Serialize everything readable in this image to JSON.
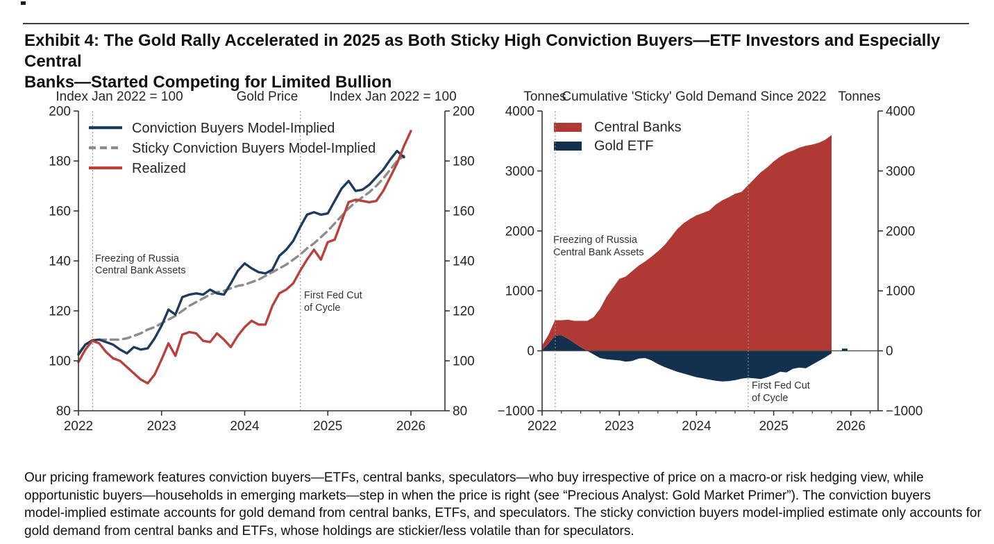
{
  "page": {
    "title_lines": [
      "Exhibit 4: The Gold Rally Accelerated in 2025 as Both Sticky High Conviction Buyers—ETF Investors and Especially Central",
      "Banks—Started Competing for Limited Bullion"
    ],
    "footnote_lines": [
      "Our pricing framework features conviction buyers—ETFs, central banks, speculators—who buy irrespective of price on a macro-or risk hedging view, while",
      "opportunistic buyers—households in emerging markets—step in when the price is right (see “Precious Analyst: Gold Market Primer”). The conviction buyers",
      "model-implied estimate accounts for gold demand from central banks, ETFs, and speculators. The sticky conviction buyers model-implied estimate only accounts for",
      "gold demand from central banks and ETFs, whose holdings are stickier/less volatile than for speculators."
    ]
  },
  "colors": {
    "navy": "#1E3A5C",
    "navy_fill": "#14304F",
    "red": "#B8423B",
    "red_fill": "#B03A33",
    "gray": "#8C8C8C",
    "axis": "#333333",
    "text": "#262626",
    "annotation_line": "#909090",
    "annotation_text": "#333333",
    "zero_line": "#4D4D4D"
  },
  "chart_data": [
    {
      "type": "line",
      "title": "Gold Price",
      "left_axis_header": "Index Jan 2022 = 100",
      "right_axis_header": "Index Jan 2022 = 100",
      "ylim": [
        80,
        200
      ],
      "ytick_values": [
        80,
        100,
        120,
        140,
        160,
        180,
        200
      ],
      "ytick_labels": [
        "80",
        "100",
        "120",
        "140",
        "160",
        "180",
        "200"
      ],
      "xtick_values": [
        2022,
        2023,
        2024,
        2025,
        2026
      ],
      "xtick_labels": [
        "2022",
        "2023",
        "2024",
        "2025",
        "2026"
      ],
      "x_start": 2022,
      "x_step": 0.083333,
      "series": [
        {
          "name": "Conviction Buyers Model-Implied",
          "color_key": "navy",
          "style": "solid",
          "values": [
            102.5,
            106.5,
            108.2,
            108.5,
            107.5,
            106.5,
            104.5,
            103,
            105.5,
            104.5,
            105,
            109,
            114,
            120.5,
            118.5,
            125.5,
            126.5,
            127,
            126.5,
            128.5,
            127,
            126.5,
            131,
            136,
            139,
            137,
            135.5,
            135,
            136.5,
            142,
            144.5,
            148,
            153.5,
            158.5,
            159.5,
            158.5,
            159,
            164,
            169,
            172,
            168,
            168.5,
            170.5,
            173.5,
            176.5,
            180.5,
            184,
            181.5
          ]
        },
        {
          "name": "Sticky Conviction Buyers Model-Implied",
          "color_key": "gray",
          "style": "dashed",
          "values": [
            103,
            106.5,
            108,
            108.5,
            108.5,
            108.5,
            108.5,
            109,
            110,
            111,
            112.5,
            113.5,
            115,
            116.5,
            118,
            120,
            122,
            123.5,
            125,
            126.5,
            127.5,
            128,
            129,
            130,
            130.5,
            131.5,
            132.5,
            134,
            135.5,
            137,
            138.5,
            140.5,
            142.5,
            145,
            147,
            149.5,
            152,
            155,
            158,
            161,
            163.5,
            165.5,
            167.5,
            170,
            173,
            176.5,
            180,
            182
          ]
        },
        {
          "name": "Realized",
          "color_key": "red",
          "style": "solid",
          "values": [
            99.5,
            104.5,
            108,
            107,
            103.5,
            101,
            100,
            97.5,
            95,
            92.5,
            91,
            94.5,
            100.5,
            107,
            102,
            110.5,
            111.5,
            111,
            108,
            107.5,
            111,
            108.5,
            105.5,
            110,
            113.5,
            116,
            114.5,
            114.5,
            122,
            127,
            128.5,
            131,
            136,
            140.5,
            144.5,
            140.5,
            147.5,
            148.5,
            156,
            163.5,
            164.5,
            164,
            163.5,
            164,
            168,
            173.5,
            179,
            186,
            192
          ]
        }
      ],
      "annotations": [
        {
          "lines": [
            "Freezing of Russia",
            "Central Bank Assets"
          ],
          "x": 2022.17
        },
        {
          "lines": [
            "First Fed Cut",
            "of Cycle"
          ],
          "x": 2024.67
        }
      ]
    },
    {
      "type": "area",
      "title": "Cumulative 'Sticky' Gold Demand Since 2022",
      "left_axis_header": "Tonnes",
      "right_axis_header": "Tonnes",
      "ylim": [
        -1000,
        4000
      ],
      "ytick_values": [
        -1000,
        0,
        1000,
        2000,
        3000,
        4000
      ],
      "ytick_labels": [
        "−1000",
        "0",
        "1000",
        "2000",
        "3000",
        "4000"
      ],
      "xtick_values": [
        2022,
        2023,
        2024,
        2025,
        2026
      ],
      "xtick_labels": [
        "2022",
        "2023",
        "2024",
        "2025",
        "2026"
      ],
      "x_start": 2022,
      "x_step": 0.083333,
      "series": [
        {
          "name": "Central Banks",
          "color_key": "red_fill",
          "values": [
            80,
            150,
            260,
            250,
            320,
            370,
            440,
            500,
            560,
            700,
            900,
            1050,
            1200,
            1240,
            1330,
            1420,
            1490,
            1570,
            1660,
            1760,
            1890,
            2030,
            2130,
            2200,
            2260,
            2300,
            2340,
            2440,
            2510,
            2560,
            2620,
            2650,
            2760,
            2870,
            2980,
            3060,
            3160,
            3240,
            3300,
            3340,
            3390,
            3420,
            3440,
            3470,
            3520,
            3600
          ]
        },
        {
          "name": "Gold ETF",
          "color_key": "navy_fill",
          "values": [
            10,
            120,
            250,
            260,
            200,
            130,
            60,
            0,
            -60,
            -120,
            -140,
            -150,
            -160,
            -180,
            -170,
            -130,
            -120,
            -160,
            -220,
            -270,
            -310,
            -350,
            -380,
            -410,
            -440,
            -460,
            -480,
            -500,
            -510,
            -505,
            -490,
            -465,
            -450,
            -460,
            -470,
            -440,
            -400,
            -350,
            -360,
            -300,
            -280,
            -290,
            -230,
            -170,
            -110,
            -40
          ]
        }
      ],
      "last_point": {
        "x": 2025.92,
        "value": 20
      },
      "annotations": [
        {
          "lines": [
            "Freezing of Russia",
            "Central Bank Assets"
          ],
          "x": 2022.17
        },
        {
          "lines": [
            "First Fed Cut",
            "of Cycle"
          ],
          "x": 2024.67
        }
      ]
    }
  ]
}
